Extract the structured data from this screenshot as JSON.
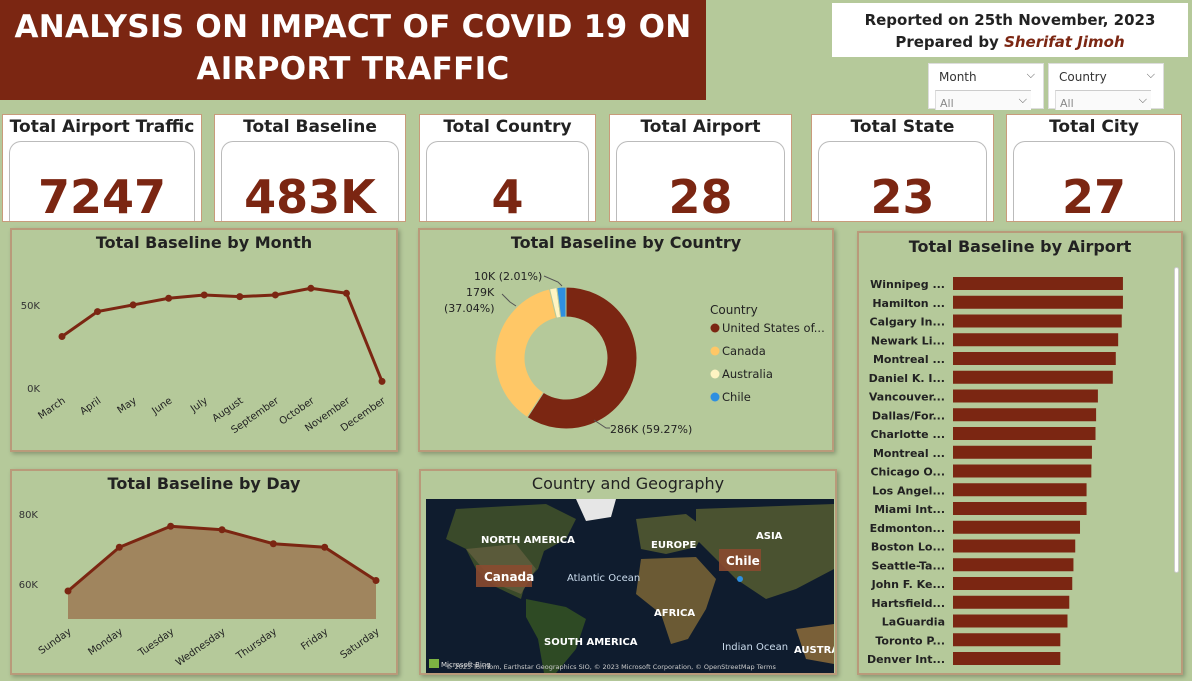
{
  "title": "ANALYSIS ON IMPACT OF COVID 19 ON AIRPORT TRAFFIC",
  "title_line1": "ANALYSIS ON IMPACT OF COVID 19 ON",
  "title_line2": "AIRPORT TRAFFIC",
  "report": {
    "reported": "Reported on 25th November, 2023",
    "prepared_prefix": "Prepared by ",
    "prepared_name": "Sherifat Jimoh"
  },
  "slicers": [
    {
      "label": "Month",
      "value": "All"
    },
    {
      "label": "Country",
      "value": "All"
    }
  ],
  "cards": [
    {
      "title": "Total Airport Traffic",
      "value": "7247"
    },
    {
      "title": "Total Baseline",
      "value": "483K"
    },
    {
      "title": "Total Country",
      "value": "4"
    },
    {
      "title": "Total Airport",
      "value": "28"
    },
    {
      "title": "Total State",
      "value": "23"
    },
    {
      "title": "Total City",
      "value": "27"
    }
  ],
  "colors": {
    "accent": "#7b2612",
    "background": "#b5c99a",
    "canada": "#ffc766",
    "australia": "#fff4c2",
    "chile": "#2e8fe0"
  },
  "chart_data": [
    {
      "type": "line",
      "title": "Total Baseline by Month",
      "categories": [
        "March",
        "April",
        "May",
        "June",
        "July",
        "August",
        "September",
        "October",
        "November",
        "December"
      ],
      "values": [
        31000,
        46000,
        50000,
        54000,
        56000,
        55000,
        56000,
        60000,
        57000,
        4000
      ],
      "yticks": [
        "50K",
        "0K"
      ],
      "ylim": [
        0,
        65000
      ]
    },
    {
      "type": "pie",
      "title": "Total Baseline by Country",
      "legend_title": "Country",
      "slices": [
        {
          "name": "United States of...",
          "value": 286000,
          "label": "286K (59.27%)"
        },
        {
          "name": "Canada",
          "value": 179000,
          "label": "179K (37.04%)"
        },
        {
          "name": "Australia",
          "value": 8000,
          "label": ""
        },
        {
          "name": "Chile",
          "value": 10000,
          "label": "10K (2.01%)"
        }
      ]
    },
    {
      "type": "area",
      "title": "Total Baseline by Day",
      "categories": [
        "Sunday",
        "Monday",
        "Tuesday",
        "Wednesday",
        "Thursday",
        "Friday",
        "Saturday"
      ],
      "values": [
        58000,
        70500,
        76500,
        75500,
        71500,
        70500,
        61000
      ],
      "yticks": [
        "80K",
        "60K"
      ],
      "ylim": [
        50000,
        82000
      ]
    },
    {
      "type": "bar",
      "title": "Total Baseline by Airport",
      "categories": [
        "Winnipeg ...",
        "Hamilton ...",
        "Calgary In...",
        "Newark Li...",
        "Montreal ...",
        "Daniel K. I...",
        "Vancouver...",
        "Dallas/For...",
        "Charlotte ...",
        "Montreal ...",
        "Chicago O...",
        "Los Angel...",
        "Miami Int...",
        "Edmonton...",
        "Boston Lo...",
        "Seattle-Ta...",
        "John F. Ke...",
        "Hartsfield...",
        "LaGuardia",
        "Toronto P...",
        "Denver Int..."
      ],
      "values": [
        28500,
        28500,
        28300,
        27700,
        27300,
        26800,
        24300,
        24000,
        23900,
        23300,
        23200,
        22400,
        22400,
        21300,
        20500,
        20200,
        20000,
        19500,
        19200,
        18000,
        18000
      ],
      "xlim": [
        0,
        30000
      ]
    }
  ],
  "map": {
    "title": "Country and Geography",
    "labels": [
      "NORTH AMERICA",
      "EUROPE",
      "ASIA",
      "AFRICA",
      "SOUTH AMERICA",
      "Atlantic Ocean",
      "Indian Ocean",
      "AUSTRA"
    ],
    "markers": [
      "Canada",
      "Chile"
    ],
    "attribution": "© 2023 TomTom, Earthstar Geographics SIO, © 2023 Microsoft Corporation, © OpenStreetMap  Terms",
    "logo": "Microsoft Bing"
  }
}
